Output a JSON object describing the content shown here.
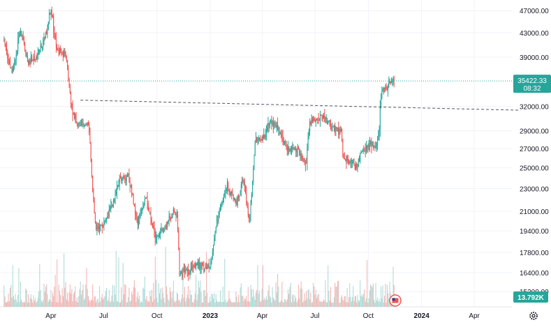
{
  "chart_data": {
    "type": "candlestick",
    "title": "",
    "xlabel": "",
    "ylabel": "",
    "ylim": [
      14300,
      48500
    ],
    "y_scale": "log",
    "grid": true,
    "x_ticks": [
      "Apr",
      "Jul",
      "Oct",
      "2023",
      "Apr",
      "Jul",
      "Oct",
      "2024",
      "Apr"
    ],
    "y_ticks": [
      "47000.00",
      "43000.00",
      "39000.00",
      "32000.00",
      "29000.00",
      "27000.00",
      "25000.00",
      "23000.00",
      "21000.00",
      "19400.00",
      "17800.00",
      "16400.00",
      "15200.00"
    ],
    "last_price": {
      "value": 35422.33,
      "label": "35422.33",
      "countdown": "08:32",
      "color": "#26a69a"
    },
    "volume": {
      "label": "13.792K",
      "color": "#26a69a"
    },
    "trendline": {
      "style": "dashed",
      "points": [
        [
          "2022-05-22",
          32800
        ],
        [
          "2024-06-20",
          31500
        ]
      ]
    },
    "colors": {
      "up": "#26a69a",
      "down": "#ef5350",
      "volume_up": "#a8d8d3",
      "volume_down": "#f3b0ae",
      "grid": "#f0f3fa",
      "text": "#131722"
    },
    "price_path": [
      [
        "2022-01-10",
        41500
      ],
      [
        "2022-01-24",
        36500
      ],
      [
        "2022-02-07",
        43500
      ],
      [
        "2022-02-21",
        38000
      ],
      [
        "2022-03-07",
        39000
      ],
      [
        "2022-03-21",
        42000
      ],
      [
        "2022-04-01",
        47200
      ],
      [
        "2022-04-12",
        40000
      ],
      [
        "2022-04-26",
        39500
      ],
      [
        "2022-05-08",
        31000
      ],
      [
        "2022-05-22",
        29500
      ],
      [
        "2022-06-05",
        30000
      ],
      [
        "2022-06-13",
        22000
      ],
      [
        "2022-06-18",
        19500
      ],
      [
        "2022-07-01",
        19900
      ],
      [
        "2022-07-15",
        21500
      ],
      [
        "2022-07-30",
        23800
      ],
      [
        "2022-08-13",
        24300
      ],
      [
        "2022-08-28",
        20000
      ],
      [
        "2022-09-12",
        22300
      ],
      [
        "2022-09-26",
        19100
      ],
      [
        "2022-10-10",
        19300
      ],
      [
        "2022-10-25",
        20600
      ],
      [
        "2022-11-05",
        21000
      ],
      [
        "2022-11-09",
        16300
      ],
      [
        "2022-11-25",
        16500
      ],
      [
        "2022-12-10",
        17000
      ],
      [
        "2022-12-31",
        16550
      ],
      [
        "2023-01-15",
        20800
      ],
      [
        "2023-01-30",
        23300
      ],
      [
        "2023-02-14",
        21700
      ],
      [
        "2023-02-28",
        23800
      ],
      [
        "2023-03-10",
        20000
      ],
      [
        "2023-03-20",
        28000
      ],
      [
        "2023-04-05",
        28200
      ],
      [
        "2023-04-14",
        30300
      ],
      [
        "2023-04-28",
        29000
      ],
      [
        "2023-05-15",
        27000
      ],
      [
        "2023-06-01",
        26800
      ],
      [
        "2023-06-15",
        25200
      ],
      [
        "2023-06-22",
        30000
      ],
      [
        "2023-07-05",
        30500
      ],
      [
        "2023-07-14",
        30800
      ],
      [
        "2023-08-01",
        29300
      ],
      [
        "2023-08-16",
        29000
      ],
      [
        "2023-08-18",
        26100
      ],
      [
        "2023-09-01",
        25800
      ],
      [
        "2023-09-11",
        25100
      ],
      [
        "2023-09-20",
        26700
      ],
      [
        "2023-10-05",
        27700
      ],
      [
        "2023-10-15",
        27200
      ],
      [
        "2023-10-20",
        29800
      ],
      [
        "2023-10-24",
        33900
      ],
      [
        "2023-11-05",
        35000
      ],
      [
        "2023-11-15",
        35422
      ]
    ]
  }
}
